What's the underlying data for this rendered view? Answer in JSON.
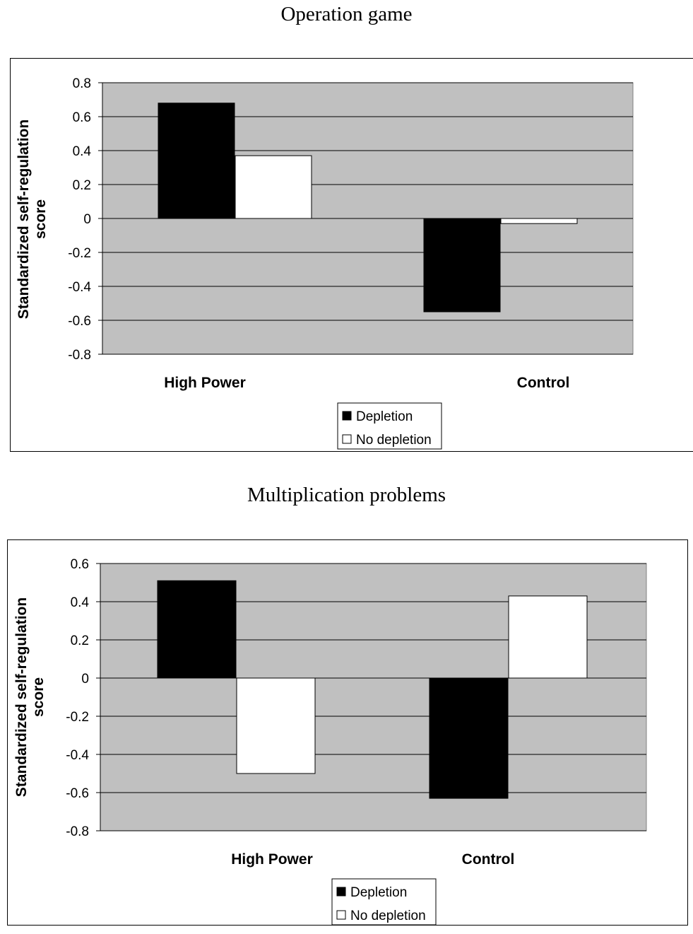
{
  "chart_data": [
    {
      "type": "bar",
      "title": "Operation game",
      "ylabel": [
        "Standardized self-regulation",
        "score"
      ],
      "categories": [
        "High Power",
        "Control"
      ],
      "series": [
        {
          "name": "Depletion",
          "color": "#000000",
          "values": [
            0.68,
            -0.55
          ]
        },
        {
          "name": "No depletion",
          "color": "#ffffff",
          "values": [
            0.37,
            -0.03
          ]
        }
      ],
      "ylim": [
        -0.8,
        0.8
      ],
      "yticks": [
        "0.8",
        "0.6",
        "0.4",
        "0.2",
        "0",
        "-0.2",
        "-0.4",
        "-0.6",
        "-0.8"
      ],
      "plot_background": "#c0c0c0",
      "grid": true,
      "legend": "bottom-center"
    },
    {
      "type": "bar",
      "title": "Multiplication problems",
      "ylabel": [
        "Standardized self-regulation",
        "score"
      ],
      "categories": [
        "High Power",
        "Control"
      ],
      "series": [
        {
          "name": "Depletion",
          "color": "#000000",
          "values": [
            0.51,
            -0.63
          ]
        },
        {
          "name": "No depletion",
          "color": "#ffffff",
          "values": [
            -0.5,
            0.43
          ]
        }
      ],
      "ylim": [
        -0.8,
        0.6
      ],
      "yticks": [
        "0.6",
        "0.4",
        "0.2",
        "0",
        "-0.2",
        "-0.4",
        "-0.6",
        "-0.8"
      ],
      "plot_background": "#c0c0c0",
      "grid": true,
      "legend": "bottom-center"
    }
  ]
}
